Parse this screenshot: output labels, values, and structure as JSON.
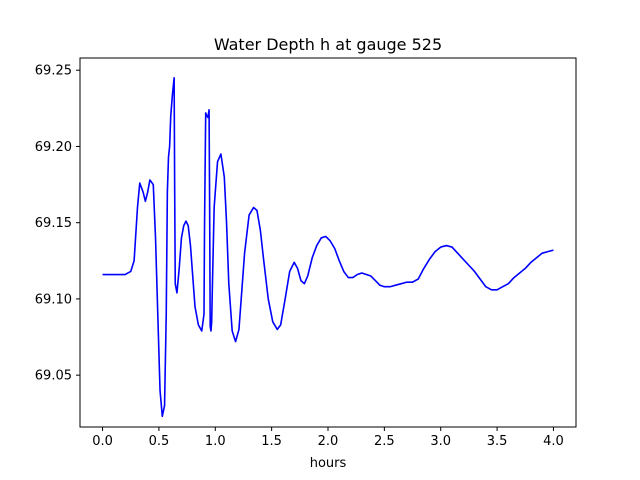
{
  "chart_data": {
    "type": "line",
    "title": "Water Depth h at gauge 525",
    "xlabel": "hours",
    "ylabel": "",
    "xlim": [
      -0.2,
      4.2
    ],
    "ylim": [
      69.016,
      69.258
    ],
    "xticks": [
      0.0,
      0.5,
      1.0,
      1.5,
      2.0,
      2.5,
      3.0,
      3.5,
      4.0
    ],
    "xtick_labels": [
      "0.0",
      "0.5",
      "1.0",
      "1.5",
      "2.0",
      "2.5",
      "3.0",
      "3.5",
      "4.0"
    ],
    "yticks": [
      69.05,
      69.1,
      69.15,
      69.2,
      69.25
    ],
    "ytick_labels": [
      "69.05",
      "69.10",
      "69.15",
      "69.20",
      "69.25"
    ],
    "grid": false,
    "series": [
      {
        "color": "#0000ff",
        "x": [
          0.0,
          0.1,
          0.2,
          0.25,
          0.28,
          0.31,
          0.33,
          0.36,
          0.38,
          0.4,
          0.42,
          0.45,
          0.47,
          0.49,
          0.51,
          0.53,
          0.55,
          0.565,
          0.575,
          0.585,
          0.595,
          0.605,
          0.62,
          0.635,
          0.64,
          0.645,
          0.66,
          0.68,
          0.7,
          0.72,
          0.74,
          0.76,
          0.78,
          0.8,
          0.82,
          0.85,
          0.88,
          0.9,
          0.905,
          0.915,
          0.925,
          0.935,
          0.945,
          0.95,
          0.955,
          0.962,
          0.968,
          0.975,
          0.99,
          1.02,
          1.05,
          1.08,
          1.1,
          1.12,
          1.15,
          1.18,
          1.21,
          1.23,
          1.26,
          1.3,
          1.34,
          1.37,
          1.4,
          1.43,
          1.47,
          1.51,
          1.55,
          1.58,
          1.62,
          1.66,
          1.7,
          1.73,
          1.76,
          1.79,
          1.82,
          1.86,
          1.9,
          1.94,
          1.98,
          2.02,
          2.06,
          2.1,
          2.14,
          2.18,
          2.22,
          2.26,
          2.3,
          2.34,
          2.38,
          2.42,
          2.46,
          2.5,
          2.55,
          2.6,
          2.65,
          2.7,
          2.75,
          2.8,
          2.85,
          2.9,
          2.95,
          3.0,
          3.05,
          3.1,
          3.15,
          3.2,
          3.25,
          3.3,
          3.35,
          3.4,
          3.45,
          3.5,
          3.55,
          3.6,
          3.65,
          3.7,
          3.75,
          3.8,
          3.85,
          3.9,
          3.95,
          4.0
        ],
        "y": [
          69.116,
          69.116,
          69.116,
          69.118,
          69.125,
          69.16,
          69.176,
          69.17,
          69.164,
          69.17,
          69.178,
          69.175,
          69.14,
          69.09,
          69.04,
          69.023,
          69.03,
          69.09,
          69.17,
          69.193,
          69.2,
          69.22,
          69.234,
          69.245,
          69.17,
          69.11,
          69.104,
          69.12,
          69.14,
          69.148,
          69.151,
          69.148,
          69.135,
          69.115,
          69.095,
          69.083,
          69.079,
          69.09,
          69.15,
          69.222,
          69.22,
          69.219,
          69.224,
          69.16,
          69.082,
          69.079,
          69.085,
          69.11,
          69.16,
          69.19,
          69.195,
          69.18,
          69.15,
          69.11,
          69.079,
          69.072,
          69.08,
          69.1,
          69.13,
          69.155,
          69.16,
          69.158,
          69.145,
          69.125,
          69.1,
          69.085,
          69.08,
          69.083,
          69.1,
          69.118,
          69.124,
          69.12,
          69.112,
          69.11,
          69.115,
          69.127,
          69.135,
          69.14,
          69.141,
          69.138,
          69.133,
          69.125,
          69.118,
          69.114,
          69.114,
          69.116,
          69.117,
          69.116,
          69.115,
          69.112,
          69.109,
          69.108,
          69.108,
          69.109,
          69.11,
          69.111,
          69.111,
          69.113,
          69.12,
          69.126,
          69.131,
          69.134,
          69.135,
          69.134,
          69.13,
          69.126,
          69.122,
          69.118,
          69.113,
          69.108,
          69.106,
          69.106,
          69.108,
          69.11,
          69.114,
          69.117,
          69.12,
          69.124,
          69.127,
          69.13,
          69.131,
          69.132
        ]
      }
    ]
  }
}
